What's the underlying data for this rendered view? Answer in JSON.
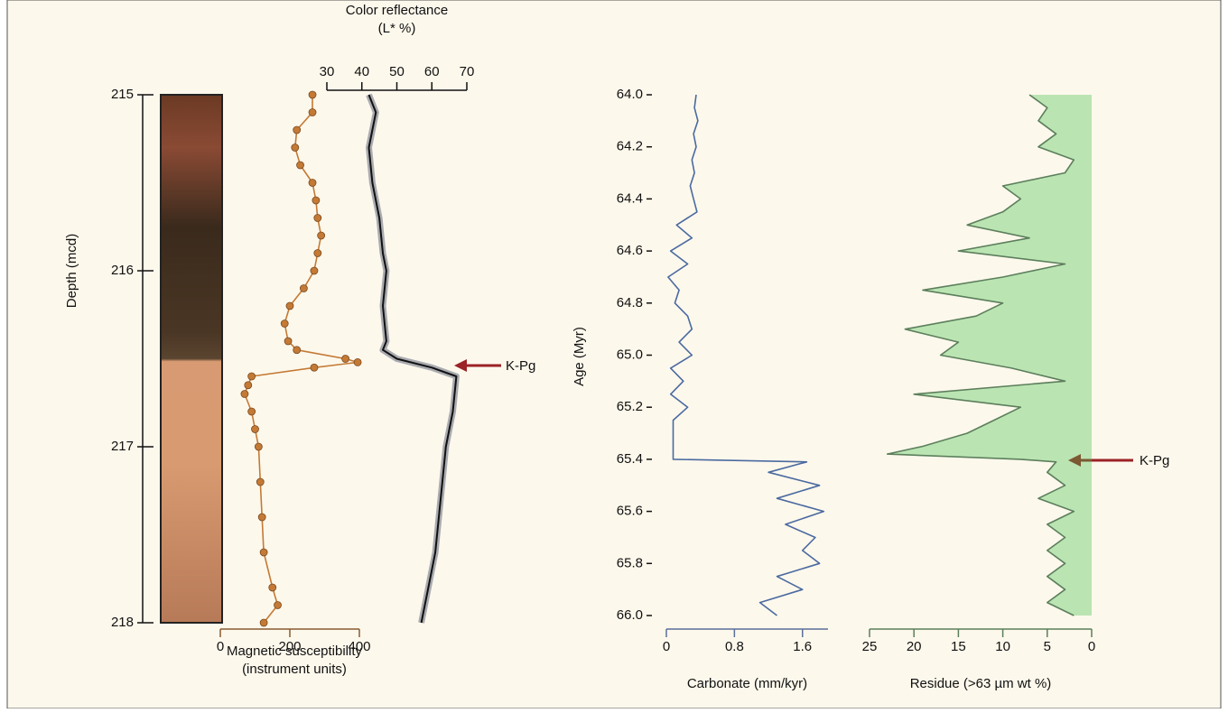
{
  "chart_data": [
    {
      "type": "line",
      "markers": true,
      "color": "#c47a35",
      "xlabel": [
        "Magnetic susceptibility",
        "(instrument units)"
      ],
      "ylabel": "Depth (mcd)",
      "y": [
        215.0,
        215.1,
        215.2,
        215.3,
        215.4,
        215.5,
        215.6,
        215.7,
        215.8,
        215.9,
        216.0,
        216.1,
        216.2,
        216.3,
        216.4,
        216.45,
        216.5,
        216.52,
        216.55,
        216.6,
        216.65,
        216.7,
        216.8,
        216.9,
        217.0,
        217.2,
        217.4,
        217.6,
        217.8,
        217.9,
        218.0
      ],
      "values": [
        265,
        265,
        220,
        215,
        230,
        265,
        275,
        280,
        290,
        280,
        270,
        240,
        200,
        185,
        195,
        220,
        360,
        395,
        270,
        90,
        80,
        70,
        90,
        100,
        110,
        115,
        120,
        125,
        150,
        165,
        125
      ],
      "xlim": [
        0,
        400
      ],
      "xticks": [
        0,
        200,
        400
      ],
      "ylim": [
        215,
        218
      ],
      "yticks": [
        215,
        216,
        217,
        218
      ]
    },
    {
      "type": "line",
      "markers": false,
      "color": "#111111",
      "band_color": "#a9abb0",
      "xlabel": [
        "Color reflectance",
        "(L* %)"
      ],
      "annotation": "K-Pg",
      "y": [
        215.0,
        215.1,
        215.2,
        215.3,
        215.5,
        215.7,
        215.9,
        216.0,
        216.2,
        216.4,
        216.45,
        216.5,
        216.55,
        216.6,
        216.8,
        217.0,
        217.2,
        217.4,
        217.6,
        217.8,
        218.0
      ],
      "values": [
        42,
        44,
        43,
        42,
        43,
        45,
        46,
        47,
        46,
        47,
        46,
        50,
        60,
        67,
        66,
        64,
        63,
        62,
        61,
        59,
        57
      ],
      "xlim": [
        30,
        70
      ],
      "xticks": [
        30,
        40,
        50,
        60,
        70
      ],
      "ylim": [
        215,
        218
      ]
    },
    {
      "type": "line",
      "markers": false,
      "color": "#4a6aa0",
      "xlabel": [
        "Carbonate (mm/kyr)"
      ],
      "ylabel": "Age (Myr)",
      "y": [
        64.0,
        64.05,
        64.1,
        64.15,
        64.2,
        64.25,
        64.3,
        64.35,
        64.4,
        64.45,
        64.5,
        64.55,
        64.6,
        64.65,
        64.7,
        64.75,
        64.8,
        64.85,
        64.9,
        64.95,
        65.0,
        65.05,
        65.1,
        65.15,
        65.2,
        65.25,
        65.3,
        65.35,
        65.4,
        65.41,
        65.45,
        65.5,
        65.55,
        65.6,
        65.65,
        65.7,
        65.75,
        65.8,
        65.85,
        65.9,
        65.95,
        66.0
      ],
      "values": [
        0.35,
        0.33,
        0.37,
        0.32,
        0.35,
        0.3,
        0.33,
        0.28,
        0.32,
        0.36,
        0.12,
        0.3,
        0.05,
        0.25,
        0.02,
        0.15,
        0.1,
        0.25,
        0.3,
        0.15,
        0.3,
        0.05,
        0.2,
        0.05,
        0.25,
        0.08,
        0.08,
        0.08,
        0.08,
        1.65,
        1.2,
        1.8,
        1.3,
        1.85,
        1.4,
        1.75,
        1.6,
        1.8,
        1.3,
        1.6,
        1.1,
        1.3
      ],
      "xlim": [
        0,
        1.9
      ],
      "xticks": [
        0,
        0.8,
        1.6
      ],
      "ylim": [
        64,
        66
      ],
      "yticks": [
        {
          "value": 64,
          "label": "64.0"
        },
        {
          "value": 64.2,
          "label": "64.2"
        },
        {
          "value": 64.4,
          "label": "64.4"
        },
        {
          "value": 64.6,
          "label": "64.6"
        },
        {
          "value": 64.8,
          "label": "64.8"
        },
        {
          "value": 65,
          "label": "65.0"
        },
        {
          "value": 65.2,
          "label": "65.2"
        },
        {
          "value": 65.4,
          "label": "65.4"
        },
        {
          "value": 65.6,
          "label": "65.6"
        },
        {
          "value": 65.8,
          "label": "65.8"
        },
        {
          "value": 66,
          "label": "66.0"
        }
      ]
    },
    {
      "type": "line",
      "markers": false,
      "color": "#5b7f5b",
      "fill_color": "#3fbf4a",
      "xlabel": [
        "Residue (>63 µm wt %)"
      ],
      "annotation": "K-Pg",
      "y": [
        64.0,
        64.05,
        64.1,
        64.15,
        64.2,
        64.25,
        64.3,
        64.35,
        64.4,
        64.45,
        64.5,
        64.55,
        64.6,
        64.65,
        64.7,
        64.75,
        64.8,
        64.85,
        64.9,
        64.95,
        65.0,
        65.05,
        65.1,
        65.15,
        65.2,
        65.25,
        65.3,
        65.35,
        65.38,
        65.4,
        65.41,
        65.45,
        65.5,
        65.55,
        65.6,
        65.65,
        65.7,
        65.75,
        65.8,
        65.85,
        65.9,
        65.95,
        66.0
      ],
      "values": [
        7,
        5,
        6,
        4,
        6,
        2,
        3,
        10,
        8,
        10,
        14,
        7,
        15,
        3,
        10,
        19,
        10,
        13,
        21,
        15,
        17,
        9,
        3,
        20,
        8,
        11,
        14,
        19,
        23,
        8,
        4,
        5,
        3,
        6,
        2,
        5,
        3,
        5,
        3,
        5,
        3,
        5,
        2
      ],
      "xlim": [
        25,
        0
      ],
      "xticks": [
        25,
        20,
        15,
        10,
        5,
        0
      ],
      "ylim": [
        64,
        66
      ]
    }
  ]
}
